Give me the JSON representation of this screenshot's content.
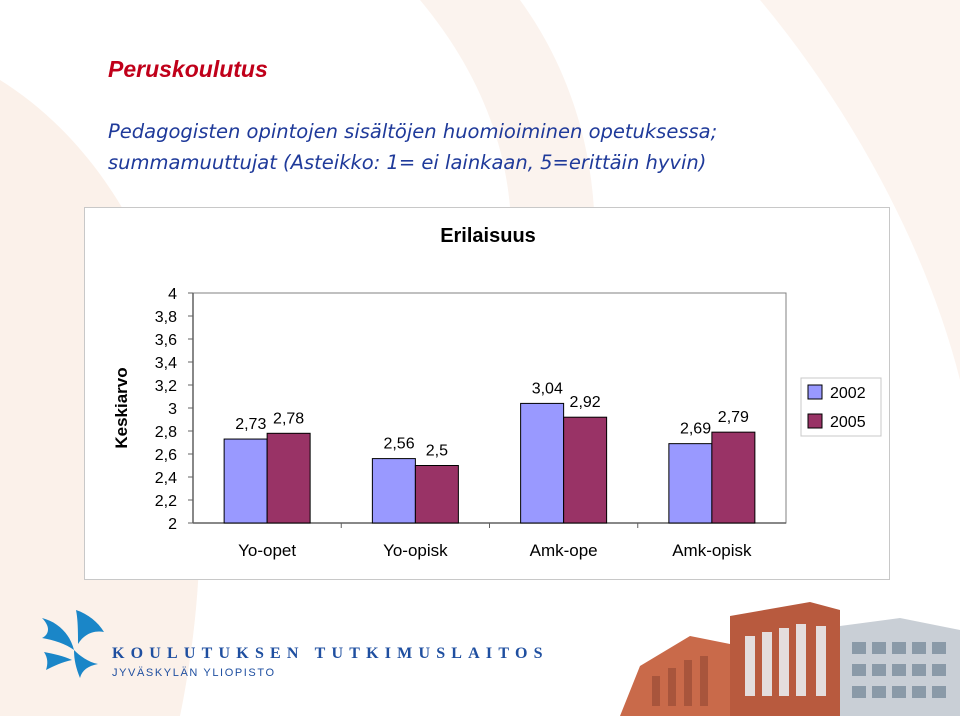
{
  "slide": {
    "title": "Peruskoulutus",
    "subtitle_line1": "Pedagogisten opintojen sisältöjen huomioiminen opetuksessa;",
    "subtitle_line2": "summamuuttujat (Asteikko: 1= ei lainkaan, 5=erittäin hyvin)"
  },
  "chart_data": {
    "type": "bar",
    "title": "Erilaisuus",
    "ylabel": "Keskiarvo",
    "xlabel": "",
    "categories": [
      "Yo-opet",
      "Yo-opisk",
      "Amk-ope",
      "Amk-opisk"
    ],
    "series": [
      {
        "name": "2002",
        "values": [
          2.73,
          2.56,
          3.04,
          2.69
        ],
        "labels": [
          "2,73",
          "2,56",
          "3,04",
          "2,69"
        ],
        "color": "#9999ff"
      },
      {
        "name": "2005",
        "values": [
          2.78,
          2.5,
          2.92,
          2.79
        ],
        "labels": [
          "2,78",
          "2,5",
          "2,92",
          "2,79"
        ],
        "color": "#993366"
      }
    ],
    "ylim": [
      2,
      4
    ],
    "yticks": [
      2,
      2.2,
      2.4,
      2.6,
      2.8,
      3,
      3.2,
      3.4,
      3.6,
      3.8,
      4
    ],
    "ytick_labels": [
      "2",
      "2,2",
      "2,4",
      "2,6",
      "2,8",
      "3",
      "3,2",
      "3,4",
      "3,6",
      "3,8",
      "4"
    ],
    "grid": false,
    "legend_position": "right"
  },
  "footer": {
    "brand_line1": "KOULUTUKSEN TUTKIMUSLAITOS",
    "brand_line2": "JYVÄSKYLÄN YLIOPISTO",
    "logo_icon": "butterfly-logo-icon",
    "colors": {
      "brand": "#1f4fa0",
      "title": "#c0001a",
      "subtitle": "#1f3a9a"
    }
  }
}
